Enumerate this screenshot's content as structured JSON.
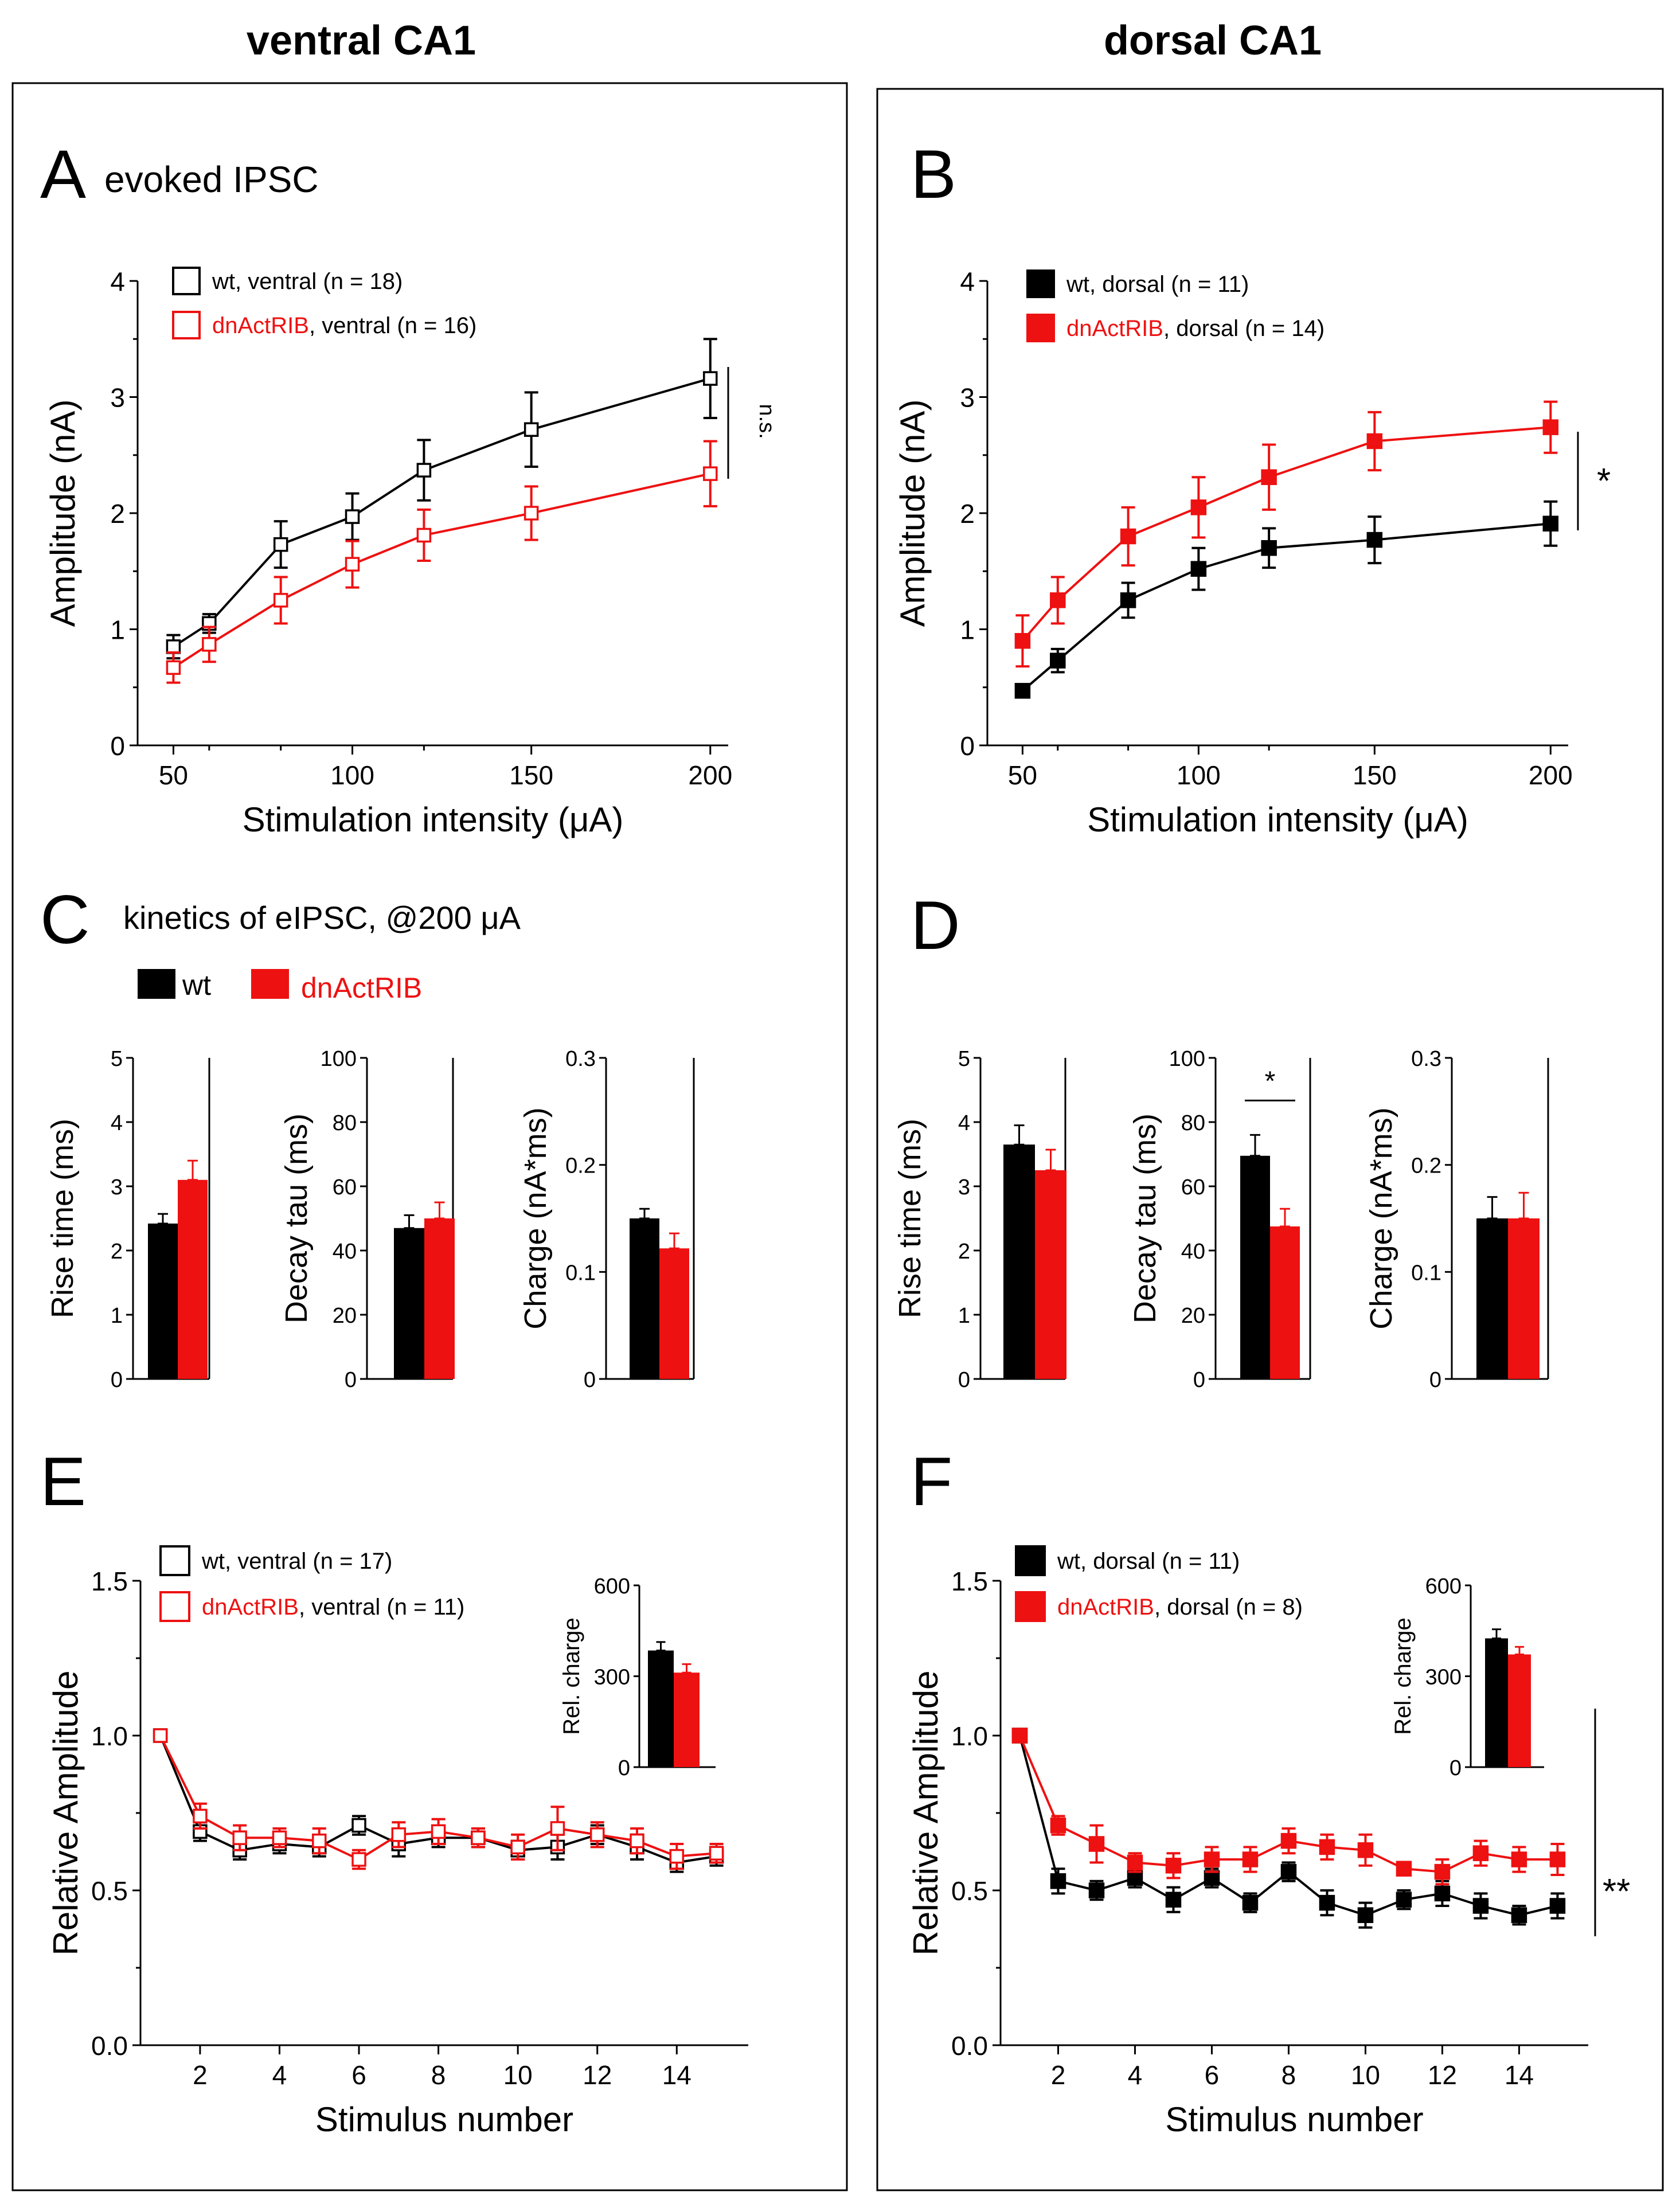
{
  "titles": {
    "left": "ventral CA1",
    "right": "dorsal CA1"
  },
  "colors": {
    "wt": "#000000",
    "dn": "#ee1111"
  },
  "panels": {
    "A": {
      "letter": "A",
      "title": "evoked IPSC"
    },
    "B": {
      "letter": "B"
    },
    "C": {
      "letter": "C",
      "title": "kinetics of eIPSC, @200 μA",
      "legend_wt": "wt",
      "legend_dn": "dnActRIB"
    },
    "D": {
      "letter": "D"
    },
    "E": {
      "letter": "E"
    },
    "F": {
      "letter": "F"
    }
  },
  "chart_data": [
    {
      "id": "A",
      "type": "line",
      "xlabel": "Stimulation intensity (μA)",
      "ylabel": "Amplitude (nA)",
      "xlim": [
        40,
        205
      ],
      "ylim": [
        0,
        4
      ],
      "xticks": [
        50,
        100,
        150,
        200
      ],
      "xminor": [
        60,
        80,
        120
      ],
      "yticks": [
        0,
        1,
        2,
        3,
        4
      ],
      "x": [
        50,
        60,
        80,
        100,
        120,
        150,
        200
      ],
      "marker": "open",
      "series": [
        {
          "key": "wt",
          "legend_name": "wt",
          "legend_rest": ", ventral (n = 18)",
          "values": [
            0.85,
            1.05,
            1.73,
            1.97,
            2.37,
            2.72,
            3.16
          ],
          "errors": [
            0.1,
            0.08,
            0.2,
            0.2,
            0.26,
            0.32,
            0.34
          ]
        },
        {
          "key": "dn",
          "legend_name": "dnActRIB",
          "legend_rest": ", ventral (n = 16)",
          "values": [
            0.67,
            0.87,
            1.25,
            1.56,
            1.81,
            2.0,
            2.34
          ],
          "errors": [
            0.13,
            0.15,
            0.2,
            0.2,
            0.22,
            0.23,
            0.28
          ]
        }
      ],
      "sig_label": "n.s."
    },
    {
      "id": "B",
      "type": "line",
      "xlabel": "Stimulation intensity (μA)",
      "ylabel": "Amplitude (nA)",
      "xlim": [
        40,
        205
      ],
      "ylim": [
        0,
        4
      ],
      "xticks": [
        50,
        100,
        150,
        200
      ],
      "xminor": [
        60,
        80,
        120
      ],
      "yticks": [
        0,
        1,
        2,
        3,
        4
      ],
      "x": [
        50,
        60,
        80,
        100,
        120,
        150,
        200
      ],
      "marker": "filled",
      "series": [
        {
          "key": "wt",
          "legend_name": "wt",
          "legend_rest": ", dorsal (n = 11)",
          "values": [
            0.47,
            0.73,
            1.25,
            1.52,
            1.7,
            1.77,
            1.91
          ],
          "errors": [
            0.05,
            0.1,
            0.15,
            0.18,
            0.17,
            0.2,
            0.19
          ]
        },
        {
          "key": "dn",
          "legend_name": "dnActRIB",
          "legend_rest": ", dorsal (n = 14)",
          "values": [
            0.9,
            1.25,
            1.8,
            2.05,
            2.31,
            2.62,
            2.74
          ],
          "errors": [
            0.22,
            0.2,
            0.25,
            0.26,
            0.28,
            0.25,
            0.22
          ]
        }
      ],
      "sig_label": "*"
    },
    {
      "id": "C",
      "type": "bar",
      "categories": [
        "wt",
        "dnActRIB"
      ],
      "subplots": [
        {
          "ylabel": "Rise time (ms)",
          "ylim": [
            0,
            5
          ],
          "yticks": [
            0,
            1,
            2,
            3,
            4,
            5
          ],
          "ytick_labels": [
            "0",
            "1",
            "2",
            "3",
            "4",
            "5"
          ],
          "values": [
            2.42,
            3.1
          ],
          "errors": [
            0.15,
            0.3
          ]
        },
        {
          "ylabel": "Decay tau (ms)",
          "ylim": [
            0,
            100
          ],
          "yticks": [
            0,
            20,
            40,
            60,
            80,
            100
          ],
          "ytick_labels": [
            "0",
            "20",
            "40",
            "60",
            "80",
            "100"
          ],
          "values": [
            47,
            50
          ],
          "errors": [
            4,
            5
          ]
        },
        {
          "ylabel": "Charge (nA*ms)",
          "ylim": [
            0,
            0.3
          ],
          "yticks": [
            0,
            0.1,
            0.2,
            0.3
          ],
          "ytick_labels": [
            "0",
            "0.1",
            "0.2",
            "0.3"
          ],
          "values": [
            0.15,
            0.122
          ],
          "errors": [
            0.009,
            0.014
          ]
        }
      ]
    },
    {
      "id": "D",
      "type": "bar",
      "categories": [
        "wt",
        "dnActRIB"
      ],
      "subplots": [
        {
          "ylabel": "Rise time (ms)",
          "ylim": [
            0,
            5
          ],
          "yticks": [
            0,
            1,
            2,
            3,
            4,
            5
          ],
          "ytick_labels": [
            "0",
            "1",
            "2",
            "3",
            "4",
            "5"
          ],
          "values": [
            3.65,
            3.25
          ],
          "errors": [
            0.3,
            0.32
          ]
        },
        {
          "ylabel": "Decay tau (ms)",
          "ylim": [
            0,
            100
          ],
          "yticks": [
            0,
            20,
            40,
            60,
            80,
            100
          ],
          "ytick_labels": [
            "0",
            "20",
            "40",
            "60",
            "80",
            "100"
          ],
          "values": [
            69.5,
            47.5
          ],
          "errors": [
            6.5,
            5.5
          ],
          "sig_label": "*"
        },
        {
          "ylabel": "Charge (nA*ms)",
          "ylim": [
            0,
            0.3
          ],
          "yticks": [
            0,
            0.1,
            0.2,
            0.3
          ],
          "ytick_labels": [
            "0",
            "0.1",
            "0.2",
            "0.3"
          ],
          "values": [
            0.15,
            0.15
          ],
          "errors": [
            0.02,
            0.024
          ]
        }
      ]
    },
    {
      "id": "E",
      "type": "line",
      "xlabel": "Stimulus number",
      "ylabel": "Relative Amplitude",
      "xlim": [
        0.5,
        15.8
      ],
      "ylim": [
        0,
        1.5
      ],
      "xticks": [
        2,
        4,
        6,
        8,
        10,
        12,
        14
      ],
      "xminor": [],
      "yticks": [
        0,
        0.5,
        1,
        1.5
      ],
      "ytick_labels": [
        "0.0",
        "0.5",
        "1.0",
        "1.5"
      ],
      "x": [
        1,
        2,
        3,
        4,
        5,
        6,
        7,
        8,
        9,
        10,
        11,
        12,
        13,
        14,
        15
      ],
      "marker": "open",
      "series": [
        {
          "key": "wt",
          "legend_name": "wt",
          "legend_rest": ", ventral (n = 17)",
          "values": [
            1.0,
            0.69,
            0.63,
            0.65,
            0.64,
            0.71,
            0.65,
            0.67,
            0.67,
            0.63,
            0.64,
            0.68,
            0.64,
            0.59,
            0.61
          ],
          "errors": [
            0,
            0.03,
            0.03,
            0.03,
            0.03,
            0.03,
            0.04,
            0.03,
            0.03,
            0.03,
            0.04,
            0.03,
            0.04,
            0.03,
            0.03
          ]
        },
        {
          "key": "dn",
          "legend_name": "dnActRIB",
          "legend_rest": ", ventral (n = 11)",
          "values": [
            1.0,
            0.74,
            0.67,
            0.67,
            0.66,
            0.6,
            0.68,
            0.69,
            0.67,
            0.64,
            0.7,
            0.68,
            0.66,
            0.61,
            0.62
          ],
          "errors": [
            0,
            0.04,
            0.04,
            0.03,
            0.04,
            0.03,
            0.04,
            0.04,
            0.03,
            0.04,
            0.07,
            0.04,
            0.04,
            0.04,
            0.03
          ]
        }
      ],
      "inset": {
        "ylabel": "Rel. charge",
        "ylim": [
          0,
          600
        ],
        "yticks": [
          0,
          300,
          600
        ],
        "values": [
          385,
          312
        ],
        "errors": [
          28,
          28
        ]
      }
    },
    {
      "id": "F",
      "type": "line",
      "xlabel": "Stimulus number",
      "ylabel": "Relative Amplitude",
      "xlim": [
        0.5,
        15.8
      ],
      "ylim": [
        0,
        1.5
      ],
      "xticks": [
        2,
        4,
        6,
        8,
        10,
        12,
        14
      ],
      "xminor": [],
      "yticks": [
        0,
        0.5,
        1,
        1.5
      ],
      "ytick_labels": [
        "0.0",
        "0.5",
        "1.0",
        "1.5"
      ],
      "x": [
        1,
        2,
        3,
        4,
        5,
        6,
        7,
        8,
        9,
        10,
        11,
        12,
        13,
        14,
        15
      ],
      "marker": "filled",
      "series": [
        {
          "key": "wt",
          "legend_name": "wt",
          "legend_rest": ", dorsal (n = 11)",
          "values": [
            1.0,
            0.53,
            0.5,
            0.54,
            0.47,
            0.54,
            0.46,
            0.56,
            0.46,
            0.42,
            0.47,
            0.49,
            0.45,
            0.42,
            0.45
          ],
          "errors": [
            0,
            0.04,
            0.03,
            0.03,
            0.04,
            0.03,
            0.03,
            0.03,
            0.04,
            0.04,
            0.03,
            0.04,
            0.04,
            0.03,
            0.04
          ]
        },
        {
          "key": "dn",
          "legend_name": "dnActRIB",
          "legend_rest": ", dorsal (n = 8)",
          "values": [
            1.0,
            0.71,
            0.65,
            0.59,
            0.58,
            0.6,
            0.6,
            0.66,
            0.64,
            0.63,
            0.57,
            0.56,
            0.62,
            0.6,
            0.6
          ],
          "errors": [
            0,
            0.03,
            0.06,
            0.03,
            0.04,
            0.04,
            0.04,
            0.04,
            0.04,
            0.05,
            0.02,
            0.04,
            0.04,
            0.04,
            0.05
          ]
        }
      ],
      "inset": {
        "ylabel": "Rel. charge",
        "ylim": [
          0,
          600
        ],
        "yticks": [
          0,
          300,
          600
        ],
        "values": [
          425,
          372
        ],
        "errors": [
          30,
          25
        ]
      },
      "sig_label": "**"
    }
  ]
}
